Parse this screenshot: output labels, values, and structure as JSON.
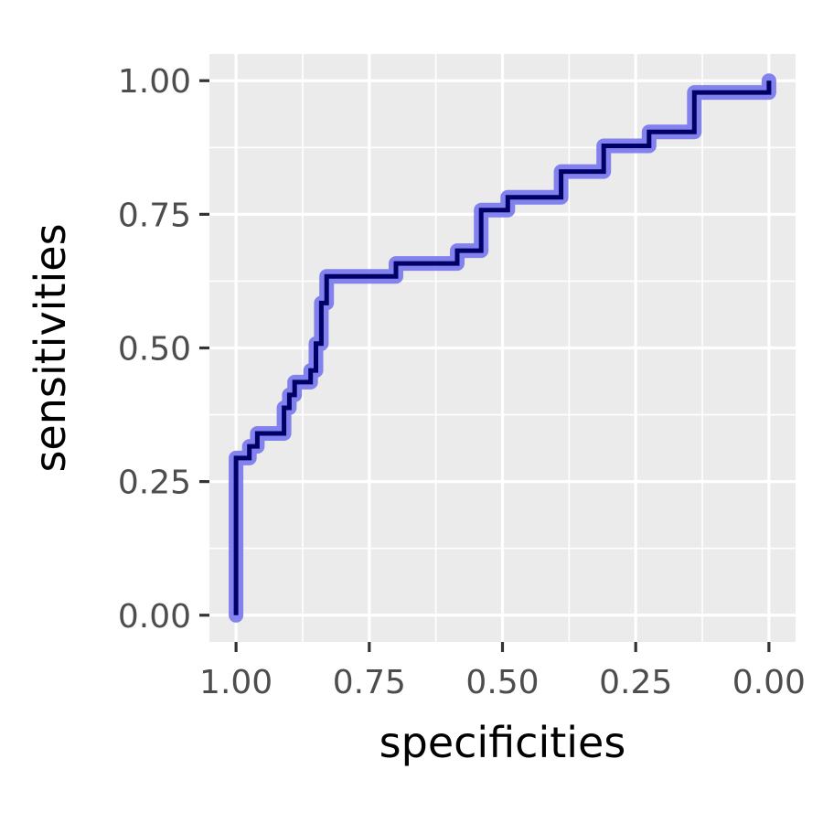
{
  "chart_data": {
    "type": "line",
    "title": "",
    "xlabel": "specificities",
    "ylabel": "sensitivities",
    "x_reversed": true,
    "xlim": [
      1.05,
      -0.05
    ],
    "ylim": [
      -0.05,
      1.05
    ],
    "x_ticks": [
      1.0,
      0.75,
      0.5,
      0.25,
      0.0
    ],
    "x_tick_labels": [
      "1.00",
      "0.75",
      "0.50",
      "0.25",
      "0.00"
    ],
    "y_ticks": [
      0.0,
      0.25,
      0.5,
      0.75,
      1.0
    ],
    "y_tick_labels": [
      "0.00",
      "0.25",
      "0.50",
      "0.75",
      "1.00"
    ],
    "grid": true,
    "panel_background": "#ebebeb",
    "series": [
      {
        "step": true,
        "colors": {
          "band": "#7777ee",
          "line": "#000066"
        },
        "points": [
          [
            1.0,
            0.0
          ],
          [
            1.0,
            0.294
          ],
          [
            0.975,
            0.294
          ],
          [
            0.975,
            0.316
          ],
          [
            0.96,
            0.316
          ],
          [
            0.96,
            0.34
          ],
          [
            0.91,
            0.34
          ],
          [
            0.91,
            0.388
          ],
          [
            0.9,
            0.388
          ],
          [
            0.9,
            0.412
          ],
          [
            0.89,
            0.412
          ],
          [
            0.89,
            0.436
          ],
          [
            0.86,
            0.436
          ],
          [
            0.86,
            0.458
          ],
          [
            0.85,
            0.458
          ],
          [
            0.85,
            0.508
          ],
          [
            0.84,
            0.508
          ],
          [
            0.84,
            0.584
          ],
          [
            0.83,
            0.584
          ],
          [
            0.83,
            0.634
          ],
          [
            0.7,
            0.634
          ],
          [
            0.7,
            0.658
          ],
          [
            0.585,
            0.658
          ],
          [
            0.585,
            0.682
          ],
          [
            0.54,
            0.682
          ],
          [
            0.54,
            0.758
          ],
          [
            0.49,
            0.758
          ],
          [
            0.49,
            0.782
          ],
          [
            0.39,
            0.782
          ],
          [
            0.39,
            0.83
          ],
          [
            0.31,
            0.83
          ],
          [
            0.31,
            0.878
          ],
          [
            0.225,
            0.878
          ],
          [
            0.225,
            0.904
          ],
          [
            0.14,
            0.904
          ],
          [
            0.14,
            0.978
          ],
          [
            0.0,
            0.978
          ],
          [
            0.0,
            1.0
          ]
        ]
      }
    ]
  }
}
